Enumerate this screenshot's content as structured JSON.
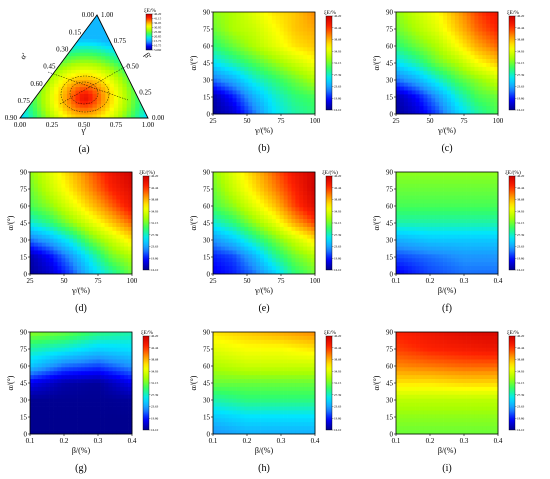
{
  "colormap": [
    "#00008b",
    "#0000ff",
    "#1e90ff",
    "#00e5ff",
    "#33ff66",
    "#aaff00",
    "#ffff00",
    "#ff9900",
    "#ff2200",
    "#cc0000"
  ],
  "colorbar": {
    "title": "ξE/%",
    "ticks": [
      "46.20",
      "42.44",
      "38.68",
      "34.93",
      "31.15",
      "27.39",
      "23.63",
      "19.86",
      "16.10"
    ]
  },
  "panels": [
    {
      "id": "a",
      "label": "(a)",
      "type": "ternary",
      "left_ticks": [
        "0.00",
        "0.15",
        "0.30",
        "0.45",
        "0.60",
        "0.75",
        "0.90"
      ],
      "right_ticks": [
        "1.00",
        "0.75",
        "0.50",
        "0.25",
        "0.00"
      ],
      "bottom_ticks": [
        "0.00",
        "0.25",
        "0.50",
        "0.75",
        "1.00"
      ],
      "left_axis_label": "α'",
      "right_axis_label": "β'",
      "bottom_axis_label": "γ'",
      "colorbar_title": "ξE/%",
      "colorbar_ticks": [
        "46.20",
        "41.15",
        "36.05",
        "30.95",
        "25.90",
        "20.85",
        "15.75",
        "10.75",
        "5.660"
      ]
    },
    {
      "id": "b",
      "label": "(b)",
      "type": "contour",
      "xlabel": "γ/(%)",
      "ylabel": "α/(°)",
      "xticks": [
        "25",
        "50",
        "75",
        "100"
      ],
      "yticks": [
        "0",
        "15",
        "30",
        "45",
        "60",
        "75",
        "90"
      ],
      "colorbar_title": "ξE/%",
      "peak": "top-right"
    },
    {
      "id": "c",
      "label": "(c)",
      "type": "contour",
      "xlabel": "γ/(%)",
      "ylabel": "α/(°)",
      "xticks": [
        "25",
        "50",
        "75",
        "100"
      ],
      "yticks": [
        "0",
        "15",
        "30",
        "45",
        "60",
        "75",
        "90"
      ],
      "colorbar_title": "ξE/%",
      "peak": "top-right"
    },
    {
      "id": "d",
      "label": "(d)",
      "type": "contour",
      "xlabel": "γ/(%)",
      "ylabel": "α/(°)",
      "xticks": [
        "25",
        "50",
        "75",
        "100"
      ],
      "yticks": [
        "0",
        "15",
        "30",
        "45",
        "60",
        "75",
        "90"
      ],
      "colorbar_title": "ξE/(%)",
      "peak": "top-right"
    },
    {
      "id": "e",
      "label": "(e)",
      "type": "contour",
      "xlabel": "γ/(%)",
      "ylabel": "α/(°)",
      "xticks": [
        "25",
        "50",
        "75",
        "100"
      ],
      "yticks": [
        "0",
        "15",
        "30",
        "45",
        "60",
        "75",
        "90"
      ],
      "colorbar_title": "ξE/(%)",
      "peak": "top-right"
    },
    {
      "id": "f",
      "label": "(f)",
      "type": "contour",
      "xlabel": "β/(%)",
      "ylabel": "α/(°)",
      "xticks": [
        "0.1",
        "0.2",
        "0.3",
        "0.4"
      ],
      "yticks": [
        "0",
        "15",
        "30",
        "45",
        "60",
        "75",
        "90"
      ],
      "colorbar_title": "ξE/(%)",
      "peak": "top"
    },
    {
      "id": "g",
      "label": "(g)",
      "type": "contour",
      "xlabel": "β/(%)",
      "ylabel": "α/(°)",
      "xticks": [
        "0.1",
        "0.2",
        "0.3",
        "0.4"
      ],
      "yticks": [
        "0",
        "15",
        "30",
        "45",
        "60",
        "75",
        "90"
      ],
      "colorbar_title": "ξE/%",
      "peak": "top-left"
    },
    {
      "id": "h",
      "label": "(h)",
      "type": "contour",
      "xlabel": "β/(%)",
      "ylabel": "α/(°)",
      "xticks": [
        "0.1",
        "0.2",
        "0.3",
        "0.4"
      ],
      "yticks": [
        "0",
        "15",
        "30",
        "45",
        "60",
        "75",
        "90"
      ],
      "colorbar_title": "ξE/%",
      "peak": "top"
    },
    {
      "id": "i",
      "label": "(i)",
      "type": "contour",
      "xlabel": "β/(%)",
      "ylabel": "α/(°)",
      "xticks": [
        "0.1",
        "0.2",
        "0.3",
        "0.4"
      ],
      "yticks": [
        "0",
        "15",
        "30",
        "45",
        "60",
        "75",
        "90"
      ],
      "colorbar_title": "ξE/%",
      "peak": "top"
    }
  ],
  "chart_data": [
    {
      "type": "heatmap",
      "panel": "a",
      "chart_kind": "ternary contour",
      "axes": [
        "α'",
        "β'",
        "γ'"
      ],
      "color_range": [
        5.66,
        46.2
      ],
      "note_values": {
        "max_region": "centre near γ' 0.50, α' 0.75–0.90"
      }
    },
    {
      "type": "heatmap",
      "panel": "b",
      "x": [
        25,
        40,
        55,
        70,
        85,
        100
      ],
      "y": [
        0,
        15,
        30,
        45,
        60,
        75,
        90
      ],
      "z": [
        [
          16.5,
          18,
          22,
          26,
          28,
          29
        ],
        [
          17,
          20,
          24,
          27,
          29,
          30
        ],
        [
          22,
          24,
          27,
          29,
          31,
          33
        ],
        [
          26,
          28,
          30,
          32,
          34,
          36
        ],
        [
          29,
          31,
          33,
          35,
          37,
          38
        ],
        [
          31,
          33,
          34,
          36,
          38,
          39
        ],
        [
          32,
          33,
          35,
          37,
          38,
          40
        ]
      ],
      "color_range": [
        16.1,
        46.2
      ],
      "xlabel": "γ/(%)",
      "ylabel": "α/(°)"
    },
    {
      "type": "heatmap",
      "panel": "c",
      "x": [
        25,
        40,
        55,
        70,
        85,
        100
      ],
      "y": [
        0,
        15,
        30,
        45,
        60,
        75,
        90
      ],
      "z": [
        [
          16.5,
          18,
          21,
          25,
          28,
          30
        ],
        [
          17,
          19.5,
          23,
          27,
          30,
          31
        ],
        [
          22,
          24,
          27,
          30,
          32,
          34
        ],
        [
          26,
          28,
          31,
          33,
          36,
          38
        ],
        [
          29,
          31,
          33,
          36,
          39,
          41
        ],
        [
          31,
          33,
          35,
          38,
          41,
          43
        ],
        [
          32,
          34,
          36,
          39,
          42,
          44
        ]
      ],
      "color_range": [
        16.1,
        46.2
      ],
      "xlabel": "γ/(%)",
      "ylabel": "α/(°)"
    },
    {
      "type": "heatmap",
      "panel": "d",
      "x": [
        25,
        40,
        55,
        70,
        85,
        100
      ],
      "y": [
        0,
        15,
        30,
        45,
        60,
        75,
        90
      ],
      "z": [
        [
          16.5,
          18,
          21,
          25,
          28,
          31
        ],
        [
          17,
          19.5,
          23,
          27,
          31,
          33
        ],
        [
          22,
          24,
          27,
          31,
          34,
          37
        ],
        [
          27,
          29,
          32,
          35,
          38,
          41
        ],
        [
          30,
          32,
          35,
          38,
          41,
          44
        ],
        [
          31,
          34,
          37,
          40,
          43,
          45
        ],
        [
          32,
          35,
          38,
          41,
          44,
          46
        ]
      ],
      "color_range": [
        16.1,
        46.2
      ],
      "xlabel": "γ/(%)",
      "ylabel": "α/(°)"
    },
    {
      "type": "heatmap",
      "panel": "e",
      "x": [
        25,
        40,
        55,
        70,
        85,
        100
      ],
      "y": [
        0,
        15,
        30,
        45,
        60,
        75,
        90
      ],
      "z": [
        [
          19,
          20,
          22,
          25,
          29,
          31
        ],
        [
          20,
          21,
          24,
          28,
          31,
          33
        ],
        [
          23,
          25,
          28,
          31,
          34,
          37
        ],
        [
          27,
          29,
          32,
          35,
          39,
          42
        ],
        [
          30,
          32,
          35,
          38,
          42,
          45
        ],
        [
          31,
          34,
          37,
          40,
          43,
          46
        ],
        [
          32,
          35,
          38,
          41,
          44,
          46
        ]
      ],
      "color_range": [
        16.1,
        46.2
      ],
      "xlabel": "γ/(%)",
      "ylabel": "α/(°)"
    },
    {
      "type": "heatmap",
      "panel": "f",
      "x": [
        0.1,
        0.2,
        0.3,
        0.4
      ],
      "y": [
        0,
        15,
        30,
        45,
        60,
        75,
        90
      ],
      "z": [
        [
          19,
          21,
          22,
          22
        ],
        [
          21,
          22,
          23,
          23
        ],
        [
          24,
          25,
          25,
          25
        ],
        [
          28,
          28,
          28,
          28
        ],
        [
          30,
          30,
          30,
          30
        ],
        [
          31,
          31,
          31,
          31
        ],
        [
          32,
          32,
          32,
          32
        ]
      ],
      "color_range": [
        16.1,
        46.2
      ],
      "xlabel": "β/(%)",
      "ylabel": "α/(°)"
    },
    {
      "type": "heatmap",
      "panel": "g",
      "x": [
        0.1,
        0.2,
        0.3,
        0.4
      ],
      "y": [
        0,
        15,
        30,
        45,
        60,
        75,
        90
      ],
      "z": [
        [
          16.2,
          16.2,
          16.2,
          16.2
        ],
        [
          16.2,
          16.2,
          16.2,
          16.2
        ],
        [
          16.3,
          16.3,
          16.3,
          16.5
        ],
        [
          19,
          17,
          16.5,
          19
        ],
        [
          25,
          22,
          21,
          23
        ],
        [
          28,
          27,
          25.5,
          26
        ],
        [
          32,
          31,
          29,
          28
        ]
      ],
      "color_range": [
        16.1,
        46.2
      ],
      "xlabel": "β/(%)",
      "ylabel": "α/(°)"
    },
    {
      "type": "heatmap",
      "panel": "h",
      "x": [
        0.1,
        0.2,
        0.3,
        0.4
      ],
      "y": [
        0,
        15,
        30,
        45,
        60,
        75,
        90
      ],
      "z": [
        [
          23,
          24,
          24,
          24
        ],
        [
          25,
          26,
          26,
          26
        ],
        [
          28,
          29,
          29,
          29
        ],
        [
          31,
          31,
          31,
          31
        ],
        [
          33,
          34,
          34,
          34
        ],
        [
          35,
          36,
          36,
          37
        ],
        [
          37,
          38,
          39,
          40
        ]
      ],
      "color_range": [
        16.1,
        46.2
      ],
      "xlabel": "β/(%)",
      "ylabel": "α/(°)"
    },
    {
      "type": "heatmap",
      "panel": "i",
      "x": [
        0.1,
        0.2,
        0.3,
        0.4
      ],
      "y": [
        0,
        15,
        30,
        45,
        60,
        75,
        90
      ],
      "z": [
        [
          31,
          31,
          31,
          31
        ],
        [
          32,
          32,
          32,
          32
        ],
        [
          33.5,
          33.5,
          33.5,
          33.5
        ],
        [
          37,
          37,
          37.5,
          37.5
        ],
        [
          40,
          40.5,
          41,
          41
        ],
        [
          42,
          43,
          43.5,
          44
        ],
        [
          43,
          44,
          45,
          45.5
        ]
      ],
      "color_range": [
        16.1,
        46.2
      ],
      "xlabel": "β/(%)",
      "ylabel": "α/(°)"
    }
  ]
}
